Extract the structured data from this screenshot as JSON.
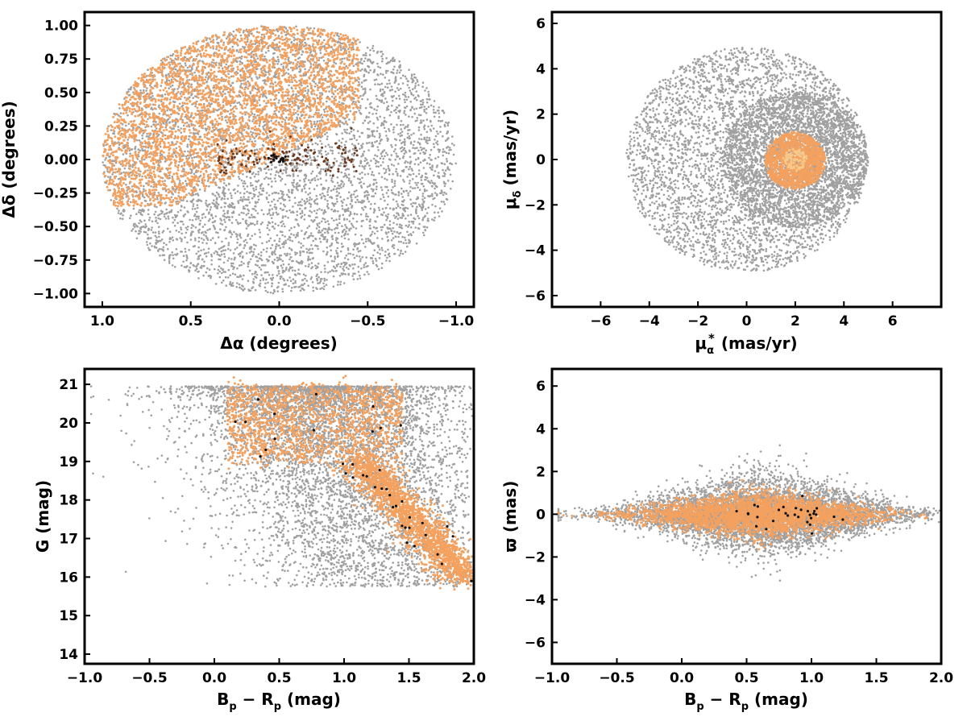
{
  "colors": {
    "field": "#a0a0a0",
    "members": "#f4a15f",
    "highprob": "#f7c98a",
    "core": "#6b3a1f",
    "centre": "#111111",
    "frame": "#000000"
  },
  "chart_data": [
    {
      "type": "scatter",
      "panel": "top-left",
      "xlabel": "Δα (degrees)",
      "ylabel": "Δδ (degrees)",
      "xlim": [
        1.1,
        -1.1
      ],
      "ylim": [
        -1.1,
        1.1
      ],
      "x_inverted": true,
      "xticks": [
        1.0,
        0.5,
        0.0,
        -0.5,
        -1.0
      ],
      "xtick_labels": [
        "1.0",
        "0.5",
        "0.0",
        "−0.5",
        "−1.0"
      ],
      "yticks": [
        1.0,
        0.75,
        0.5,
        0.25,
        0.0,
        -0.25,
        -0.5,
        -0.75,
        -1.0
      ],
      "ytick_labels": [
        "1.00",
        "0.75",
        "0.50",
        "0.25",
        "0.00",
        "−0.25",
        "−0.50",
        "−0.75",
        "−1.00"
      ],
      "series": [
        {
          "color_key": "field",
          "distribution": {
            "shape": "disk",
            "cx": 0.0,
            "cy": 0.0,
            "r": 1.0,
            "n": 5200
          }
        },
        {
          "color_key": "members",
          "distribution": {
            "shape": "upper-left-cap",
            "cx": 0.0,
            "cy": 0.0,
            "r": 1.0,
            "n": 3200
          }
        },
        {
          "color_key": "core",
          "distribution": {
            "shape": "band",
            "x_range": [
              0.35,
              -0.45
            ],
            "y_center": 0.02,
            "y_sigma": 0.06,
            "n": 140
          }
        },
        {
          "color_key": "centre",
          "distribution": {
            "shape": "gauss",
            "cx": 0.0,
            "cy": 0.0,
            "sx": 0.04,
            "sy": 0.02,
            "n": 16
          }
        }
      ]
    },
    {
      "type": "scatter",
      "panel": "top-right",
      "xlabel_main": "μ",
      "xlabel_sub": "α",
      "xlabel_sup": "*",
      "xlabel_unit": "(mas/yr)",
      "ylabel_main": "μ",
      "ylabel_sub": "δ",
      "ylabel_unit": "(mas/yr)",
      "xlim": [
        -8,
        8
      ],
      "ylim": [
        -6.5,
        6.5
      ],
      "xticks": [
        -6,
        -4,
        -2,
        0,
        2,
        4,
        6
      ],
      "xtick_labels": [
        "−6",
        "−4",
        "−2",
        "0",
        "2",
        "4",
        "6"
      ],
      "yticks": [
        6,
        4,
        2,
        0,
        -2,
        -4,
        -6
      ],
      "ytick_labels": [
        "6",
        "4",
        "2",
        "0",
        "−2",
        "−4",
        "−6"
      ],
      "series": [
        {
          "color_key": "field",
          "distribution": {
            "shape": "disk",
            "cx": 0.0,
            "cy": 0.0,
            "r": 4.95,
            "n": 3800
          }
        },
        {
          "color_key": "field",
          "distribution": {
            "shape": "disk",
            "cx": 2.0,
            "cy": 0.0,
            "r": 3.0,
            "n": 3000
          }
        },
        {
          "color_key": "members",
          "distribution": {
            "shape": "disk",
            "cx": 2.0,
            "cy": -0.05,
            "r": 1.25,
            "n": 1300
          }
        },
        {
          "color_key": "highprob",
          "distribution": {
            "shape": "disk",
            "cx": 2.0,
            "cy": 0.0,
            "r": 0.5,
            "n": 80
          }
        }
      ]
    },
    {
      "type": "scatter",
      "panel": "bottom-left",
      "xlabel_main": "B",
      "xlabel_sub1": "p",
      "xlabel_mid": " − R",
      "xlabel_sub2": "p",
      "xlabel_unit": " (mag)",
      "ylabel": "G (mag)",
      "xlim": [
        -1.0,
        2.0
      ],
      "ylim": [
        13.75,
        21.4
      ],
      "y_inverted": false,
      "xticks": [
        -1.0,
        -0.5,
        0.0,
        0.5,
        1.0,
        1.5,
        2.0
      ],
      "xtick_labels": [
        "−1.0",
        "−0.5",
        "0.0",
        "0.5",
        "1.0",
        "1.5",
        "2.0"
      ],
      "yticks": [
        21,
        20,
        19,
        18,
        17,
        16,
        15,
        14
      ],
      "ytick_labels": [
        "21",
        "20",
        "19",
        "18",
        "17",
        "16",
        "15",
        "14"
      ],
      "series": [
        {
          "color_key": "field",
          "distribution": {
            "shape": "cmd-field",
            "n": 6000
          }
        },
        {
          "color_key": "members",
          "distribution": {
            "shape": "cmd-sequence",
            "n": 3400
          }
        },
        {
          "color_key": "centre",
          "distribution": {
            "shape": "cmd-sequence",
            "n": 40
          }
        }
      ]
    },
    {
      "type": "scatter",
      "panel": "bottom-right",
      "xlabel_main": "B",
      "xlabel_sub1": "p",
      "xlabel_mid": " − R",
      "xlabel_sub2": "p",
      "xlabel_unit": " (mag)",
      "ylabel": "ϖ (mas)",
      "xlim": [
        -1.0,
        2.0
      ],
      "ylim": [
        -7,
        6.8
      ],
      "xticks": [
        -1.0,
        -0.5,
        0.0,
        0.5,
        1.0,
        1.5,
        2.0
      ],
      "xtick_labels": [
        "−1.0",
        "−0.5",
        "0.0",
        "0.5",
        "1.0",
        "1.5",
        "2.0"
      ],
      "yticks": [
        6,
        4,
        2,
        0,
        -2,
        -4,
        -6
      ],
      "ytick_labels": [
        "6",
        "4",
        "2",
        "0",
        "−2",
        "−4",
        "−6"
      ],
      "series": [
        {
          "color_key": "field",
          "distribution": {
            "shape": "spindle",
            "x_center": 0.65,
            "x_sigma": 0.55,
            "y_sigma": 1.0,
            "n": 5600
          }
        },
        {
          "color_key": "members",
          "distribution": {
            "shape": "spindle",
            "x_center": 0.6,
            "x_sigma": 0.45,
            "y_sigma": 0.55,
            "n": 3000
          }
        },
        {
          "color_key": "centre",
          "distribution": {
            "shape": "spindle",
            "x_center": 0.8,
            "x_sigma": 0.3,
            "y_sigma": 0.4,
            "n": 30
          }
        }
      ]
    }
  ]
}
